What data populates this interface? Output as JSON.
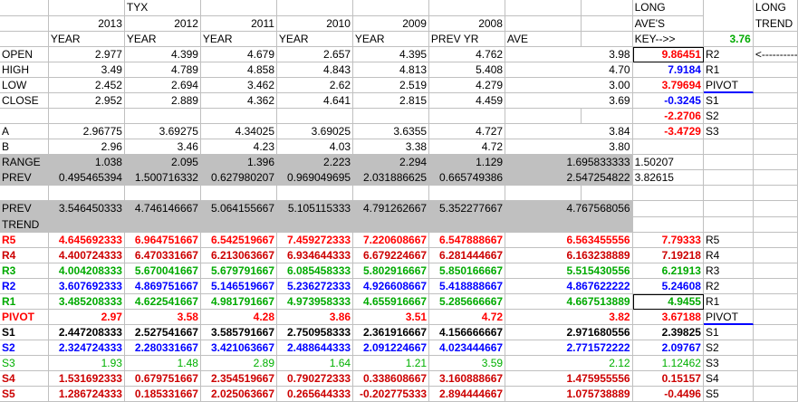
{
  "header": {
    "symbol": "TYX",
    "years": [
      "2013",
      "2012",
      "2011",
      "2010",
      "2009",
      "2008"
    ],
    "long_aves_line1": "LONG",
    "long_aves_line2": "AVE'S",
    "long_trend_line1": "LONG",
    "long_trend_line2": "TREND"
  },
  "subheader": {
    "labels": [
      "YEAR",
      "YEAR",
      "YEAR",
      "YEAR",
      "YEAR",
      "PREV YR",
      "AVE"
    ],
    "key": "KEY-->>",
    "key_value": "3.76"
  },
  "ohlc": [
    {
      "label": "OPEN",
      "values": [
        "2.977",
        "4.399",
        "4.679",
        "2.657",
        "4.395",
        "4.762",
        "3.98"
      ],
      "key": "9.86451",
      "name": "R2",
      "extra": "<----------"
    },
    {
      "label": "HIGH",
      "values": [
        "3.49",
        "4.789",
        "4.858",
        "4.843",
        "4.813",
        "5.408",
        "4.70"
      ],
      "key": "7.9184",
      "name": "R1",
      "extra": ""
    },
    {
      "label": "LOW",
      "values": [
        "2.452",
        "2.694",
        "3.462",
        "2.62",
        "2.519",
        "4.279",
        "3.00"
      ],
      "key": "3.79694",
      "name": "PIVOT",
      "extra": ""
    },
    {
      "label": "CLOSE",
      "values": [
        "2.952",
        "2.889",
        "4.362",
        "4.641",
        "2.815",
        "4.459",
        "3.69"
      ],
      "key": "-0.3245",
      "name": "S1",
      "extra": ""
    }
  ],
  "s2_key": {
    "key": "-2.2706",
    "name": "S2"
  },
  "ab": [
    {
      "label": "A",
      "values": [
        "2.96775",
        "3.69275",
        "4.34025",
        "3.69025",
        "3.6355",
        "4.727",
        "3.84"
      ],
      "key": "-3.4729",
      "name": "S3"
    },
    {
      "label": "B",
      "values": [
        "2.96",
        "3.46",
        "4.23",
        "4.03",
        "3.38",
        "4.72",
        "3.80"
      ],
      "key": "",
      "name": ""
    }
  ],
  "range_row": {
    "label": "RANGE",
    "values": [
      "1.038",
      "2.095",
      "1.396",
      "2.223",
      "2.294",
      "1.129",
      "1.695833333"
    ],
    "key": "1.50207"
  },
  "prev_row": {
    "label": "PREV",
    "values": [
      "0.495465394",
      "1.500716332",
      "0.627980207",
      "0.969049695",
      "2.031886625",
      "0.665749386",
      "2.547254822"
    ],
    "key": "3.82615"
  },
  "prev2_row": {
    "label": "PREV",
    "values": [
      "3.546450333",
      "4.746146667",
      "5.064155667",
      "5.105115333",
      "4.791262667",
      "5.352277667",
      "4.767568056"
    ]
  },
  "trend_label": "TREND",
  "levels": [
    {
      "label": "R5",
      "values": [
        "4.645692333",
        "6.964751667",
        "6.542519667",
        "7.459272333",
        "7.220608667",
        "6.547888667",
        "6.563455556"
      ],
      "key": "7.79333",
      "name": "R5",
      "cls": "red"
    },
    {
      "label": "R4",
      "values": [
        "4.400724333",
        "6.470331667",
        "6.213063667",
        "6.934644333",
        "6.679224667",
        "6.281444667",
        "6.163238889"
      ],
      "key": "7.19218",
      "name": "R4",
      "cls": "dred"
    },
    {
      "label": "R3",
      "values": [
        "4.004208333",
        "5.670041667",
        "5.679791667",
        "6.085458333",
        "5.802916667",
        "5.850166667",
        "5.515430556"
      ],
      "key": "6.21913",
      "name": "R3",
      "cls": "green"
    },
    {
      "label": "R2",
      "values": [
        "3.607692333",
        "4.869751667",
        "5.146519667",
        "5.236272333",
        "4.926608667",
        "5.418888667",
        "4.867622222"
      ],
      "key": "5.24608",
      "name": "R2",
      "cls": "blue"
    },
    {
      "label": "R1",
      "values": [
        "3.485208333",
        "4.622541667",
        "4.981791667",
        "4.973958333",
        "4.655916667",
        "5.285666667",
        "4.667513889"
      ],
      "key": "4.9455",
      "name": "R1",
      "cls": "green"
    },
    {
      "label": "PIVOT",
      "values": [
        "2.97",
        "3.58",
        "4.28",
        "3.86",
        "3.51",
        "4.72",
        "3.82"
      ],
      "key": "3.67188",
      "name": "PIVOT",
      "cls": "red"
    },
    {
      "label": "S1",
      "values": [
        "2.447208333",
        "2.527541667",
        "3.585791667",
        "2.750958333",
        "2.361916667",
        "4.156666667",
        "2.971680556"
      ],
      "key": "2.39825",
      "name": "S1",
      "cls": "bold"
    },
    {
      "label": "S2",
      "values": [
        "2.324724333",
        "2.280331667",
        "3.421063667",
        "2.488644333",
        "2.091224667",
        "4.023444667",
        "2.771572222"
      ],
      "key": "2.09767",
      "name": "S2",
      "cls": "blue"
    },
    {
      "label": "S3",
      "values": [
        "1.93",
        "1.48",
        "2.89",
        "1.64",
        "1.21",
        "3.59",
        "2.12"
      ],
      "key": "1.12462",
      "name": "S3",
      "cls": "lgreen"
    },
    {
      "label": "S4",
      "values": [
        "1.531692333",
        "0.679751667",
        "2.354519667",
        "0.790272333",
        "0.338608667",
        "3.160888667",
        "1.475955556"
      ],
      "key": "0.15157",
      "name": "S4",
      "cls": "dred"
    },
    {
      "label": "S5",
      "values": [
        "1.286724333",
        "0.185331667",
        "2.025063667",
        "0.265644333",
        "-0.202775333",
        "2.894444667",
        "1.075738889"
      ],
      "key": "-0.4496",
      "name": "S5",
      "cls": "dred"
    }
  ]
}
